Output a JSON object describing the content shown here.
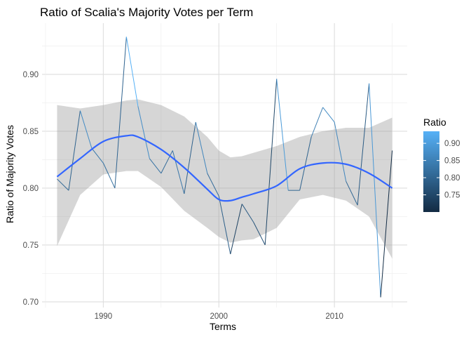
{
  "chart_data": {
    "type": "line",
    "title": "Ratio of Scalia's Majority Votes per Term",
    "xlabel": "Terms",
    "ylabel": "Ratio of Majority Votes",
    "xlim": [
      1984.7,
      2016.3
    ],
    "ylim": [
      0.695,
      0.945
    ],
    "x_ticks": [
      1990,
      2000,
      2010
    ],
    "y_ticks": [
      0.7,
      0.75,
      0.8,
      0.85,
      0.9
    ],
    "y_tick_labels": [
      "0.70",
      "0.75",
      "0.80",
      "0.85",
      "0.90"
    ],
    "grid": true,
    "legend": {
      "title": "Ratio",
      "placement": "right",
      "color_range": [
        0.7,
        0.935
      ],
      "ticks": [
        0.75,
        0.8,
        0.85,
        0.9
      ],
      "tick_labels": [
        "0.75",
        "0.80",
        "0.85",
        "0.90"
      ],
      "low_color": "#132b43",
      "high_color": "#56b1f7"
    },
    "series": [
      {
        "type": "line",
        "color_mapped": true,
        "x": [
          1986,
          1987,
          1988,
          1989,
          1990,
          1991,
          1992,
          1993,
          1994,
          1995,
          1996,
          1997,
          1998,
          1999,
          2000,
          2001,
          2002,
          2003,
          2004,
          2005,
          2006,
          2007,
          2008,
          2009,
          2010,
          2011,
          2012,
          2013,
          2014,
          2015
        ],
        "y": [
          0.808,
          0.798,
          0.868,
          0.835,
          0.822,
          0.8,
          0.933,
          0.872,
          0.826,
          0.813,
          0.833,
          0.795,
          0.858,
          0.813,
          0.793,
          0.742,
          0.786,
          0.77,
          0.75,
          0.896,
          0.798,
          0.798,
          0.845,
          0.871,
          0.858,
          0.806,
          0.785,
          0.892,
          0.704,
          0.833
        ]
      },
      {
        "type": "smooth",
        "color": "#3366ff",
        "band_color": "#999999",
        "x": [
          1986,
          1988,
          1990,
          1992,
          1993,
          1995,
          1997,
          1999,
          2000,
          2001,
          2002,
          2003,
          2005,
          2007,
          2009,
          2011,
          2013,
          2015
        ],
        "y": [
          0.81,
          0.826,
          0.841,
          0.846,
          0.845,
          0.834,
          0.818,
          0.799,
          0.79,
          0.789,
          0.792,
          0.795,
          0.802,
          0.817,
          0.822,
          0.821,
          0.813,
          0.8
        ],
        "band_upper": [
          0.873,
          0.87,
          0.873,
          0.877,
          0.878,
          0.873,
          0.863,
          0.845,
          0.833,
          0.827,
          0.828,
          0.831,
          0.837,
          0.845,
          0.85,
          0.853,
          0.853,
          0.862
        ],
        "band_lower": [
          0.749,
          0.794,
          0.812,
          0.815,
          0.815,
          0.801,
          0.78,
          0.765,
          0.757,
          0.752,
          0.754,
          0.755,
          0.765,
          0.79,
          0.794,
          0.789,
          0.775,
          0.738
        ]
      }
    ]
  }
}
